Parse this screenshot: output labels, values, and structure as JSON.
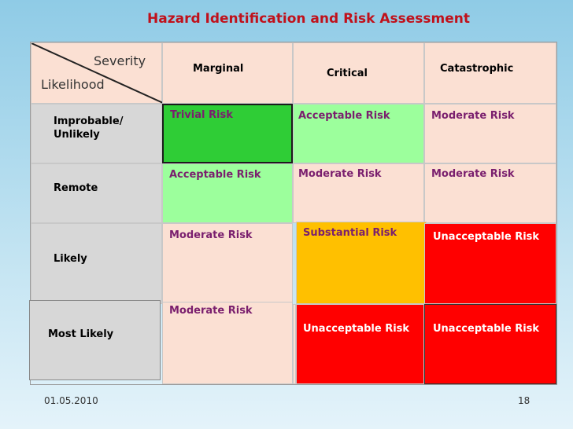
{
  "title": "Hazard Identification and Risk Assessment",
  "corner": {
    "top_label": "Severity",
    "bottom_label": "Likelihood"
  },
  "severity_headers": [
    "Marginal",
    "Critical",
    "Catastrophic"
  ],
  "likelihood_rows": [
    "Improbable/ Unlikely",
    "Remote",
    "Likely",
    "Most Likely"
  ],
  "matrix": [
    [
      "Trivial  Risk",
      "Acceptable Risk",
      "Moderate Risk"
    ],
    [
      "Acceptable Risk",
      "Moderate Risk",
      "Moderate Risk"
    ],
    [
      "Moderate Risk",
      "Substantial Risk",
      "Unacceptable Risk"
    ],
    [
      "Moderate Risk",
      "Unacceptable Risk",
      "Unacceptable Risk"
    ]
  ],
  "colors": {
    "trivial": "#2fcd36",
    "acceptable": "#9cff9c",
    "moderate": "#fbe0d3",
    "substantial": "#ffc000",
    "unacceptable": "#ff0000",
    "title": "#c0111b"
  },
  "footer": {
    "date": "01.05.2010",
    "page": "18"
  }
}
